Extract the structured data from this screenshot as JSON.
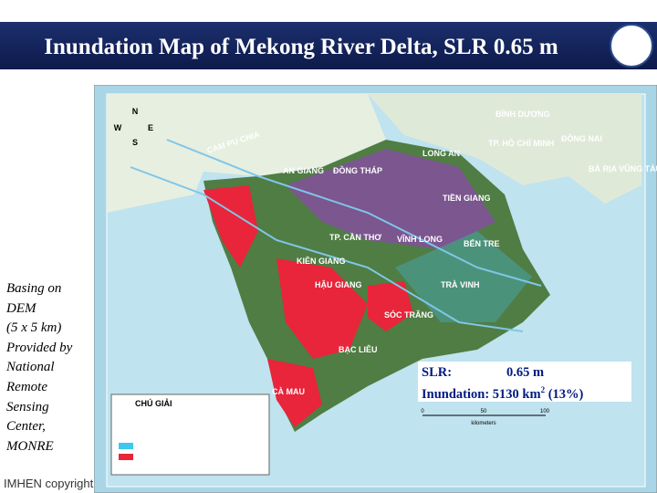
{
  "header": {
    "title": "Inundation Map of Mekong River Delta, SLR 0.65 m"
  },
  "sidebar": {
    "lines": [
      "Basing on",
      "DEM",
      "(5 x 5 km)",
      "Provided by",
      "National",
      "Remote",
      "Sensing",
      "Center,",
      "MONRE"
    ]
  },
  "footer": {
    "text": "IMHEN copyright"
  },
  "map": {
    "compass": {
      "n": "N",
      "s": "S",
      "e": "E",
      "w": "W"
    },
    "labels": [
      "CAM PU CHIA",
      "AN GIANG",
      "ĐỒNG THÁP",
      "LONG AN",
      "TIỀN GIANG",
      "TP. CẦN THƠ",
      "VĨNH LONG",
      "BẾN TRE",
      "KIÊN GIANG",
      "HẬU GIANG",
      "TRÀ VINH",
      "SÓC TRĂNG",
      "BẠC LIÊU",
      "CÀ MAU",
      "TP. HỒ CHÍ MINH",
      "ĐỒNG NAI",
      "BÀ RỊA VŨNG TÀU",
      "BÌNH DƯƠNG"
    ],
    "legend": {
      "title": "CHÚ GIẢI"
    },
    "scale": {
      "ticks": [
        "0",
        "50",
        "100"
      ],
      "unit": "kilometers"
    },
    "info": {
      "slr_label": "SLR:",
      "slr_value": "0.65 m",
      "inundation_label": "Inundation:",
      "inundation_value": "5130 km",
      "inundation_exp": "2",
      "inundation_share": "(13%)"
    }
  }
}
